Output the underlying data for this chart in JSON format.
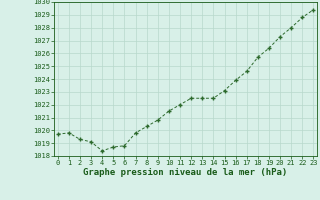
{
  "x": [
    0,
    1,
    2,
    3,
    4,
    5,
    6,
    7,
    8,
    9,
    10,
    11,
    12,
    13,
    14,
    15,
    16,
    17,
    18,
    19,
    20,
    21,
    22,
    23
  ],
  "y": [
    1019.7,
    1019.8,
    1019.3,
    1019.1,
    1018.4,
    1018.7,
    1018.8,
    1019.8,
    1020.3,
    1020.8,
    1021.5,
    1022.0,
    1022.5,
    1022.5,
    1022.5,
    1023.1,
    1023.9,
    1024.6,
    1025.7,
    1026.4,
    1027.3,
    1028.0,
    1028.8,
    1029.4
  ],
  "line_color": "#2d6a2d",
  "marker_color": "#2d6a2d",
  "bg_color": "#d8f0e8",
  "grid_color": "#b8d8cc",
  "xlabel": "Graphe pression niveau de la mer (hPa)",
  "ylim": [
    1018,
    1030
  ],
  "yticks": [
    1018,
    1019,
    1020,
    1021,
    1022,
    1023,
    1024,
    1025,
    1026,
    1027,
    1028,
    1029,
    1030
  ],
  "xticks": [
    0,
    1,
    2,
    3,
    4,
    5,
    6,
    7,
    8,
    9,
    10,
    11,
    12,
    13,
    14,
    15,
    16,
    17,
    18,
    19,
    20,
    21,
    22,
    23
  ],
  "tick_color": "#1a5c1a",
  "tick_fontsize": 5.0,
  "xlabel_fontsize": 6.5
}
